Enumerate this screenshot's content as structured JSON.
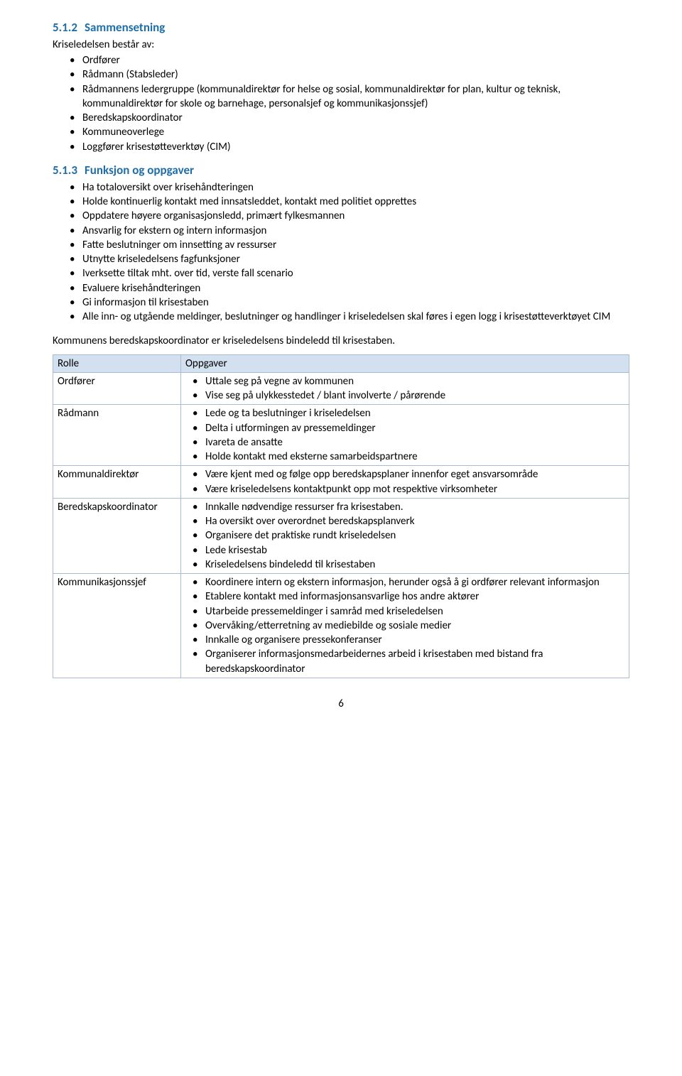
{
  "section512": {
    "num": "5.1.2",
    "title": "Sammensetning",
    "intro": "Kriseledelsen består av:",
    "items": [
      "Ordfører",
      "Rådmann (Stabsleder)",
      "Rådmannens ledergruppe (kommunaldirektør for helse og sosial, kommunaldirektør for plan, kultur og teknisk, kommunaldirektør for skole og barnehage, personalsjef og kommunikasjonssjef)",
      "Beredskapskoordinator",
      "Kommuneoverlege",
      "Loggfører krisestøtteverktøy (CIM)"
    ]
  },
  "section513": {
    "num": "5.1.3",
    "title": "Funksjon og oppgaver",
    "items": [
      "Ha totaloversikt over krisehåndteringen",
      "Holde kontinuerlig kontakt med innsatsleddet, kontakt med politiet opprettes",
      "Oppdatere høyere organisasjonsledd, primært fylkesmannen",
      "Ansvarlig for ekstern og intern informasjon",
      "Fatte beslutninger om innsetting av ressurser",
      "Utnytte kriseledelsens fagfunksjoner",
      "Iverksette tiltak mht. over tid, verste fall scenario",
      "Evaluere krisehåndteringen",
      "Gi informasjon til krisestaben",
      "Alle inn- og utgående meldinger, beslutninger og handlinger i kriseledelsen skal føres i egen logg i krisestøtteverktøyet CIM"
    ]
  },
  "bridge": "Kommunens beredskapskoordinator er kriseledelsens bindeledd til krisestaben.",
  "table": {
    "headers": [
      "Rolle",
      "Oppgaver"
    ],
    "rows": [
      {
        "role": "Ordfører",
        "tasks": [
          "Uttale seg på vegne av kommunen",
          "Vise seg på ulykkesstedet / blant involverte / pårørende"
        ]
      },
      {
        "role": "Rådmann",
        "tasks": [
          "Lede og ta beslutninger i kriseledelsen",
          "Delta i utformingen av pressemeldinger",
          "Ivareta de ansatte",
          "Holde kontakt med eksterne samarbeidspartnere"
        ]
      },
      {
        "role": "Kommunaldirektør",
        "tasks": [
          "Være kjent med og følge opp beredskapsplaner innenfor eget ansvarsområde",
          "Være kriseledelsens kontaktpunkt opp mot respektive virksomheter"
        ]
      },
      {
        "role": "Beredskapskoordinator",
        "tasks": [
          "Innkalle nødvendige ressurser fra krisestaben.",
          "Ha oversikt over overordnet beredskapsplanverk",
          "Organisere det praktiske rundt kriseledelsen",
          "Lede krisestab",
          "Kriseledelsens bindeledd til krisestaben"
        ]
      },
      {
        "role": "Kommunikasjonssjef",
        "tasks": [
          "Koordinere intern og ekstern informasjon, herunder også å gi ordfører relevant informasjon",
          "Etablere kontakt med informasjonsansvarlige hos andre aktører",
          "Utarbeide pressemeldinger i samråd med kriseledelsen",
          "Overvåking/etterretning av mediebilde og sosiale medier",
          "Innkalle og organisere pressekonferanser",
          "Organiserer informasjonsmedarbeidernes arbeid i krisestaben med bistand fra beredskapskoordinator"
        ]
      }
    ]
  },
  "pageNumber": "6",
  "colors": {
    "heading": "#1f6ea8",
    "tableHeaderBg": "#d3e0ef",
    "tableBorder": "#a8bccf",
    "text": "#000000",
    "background": "#ffffff"
  }
}
